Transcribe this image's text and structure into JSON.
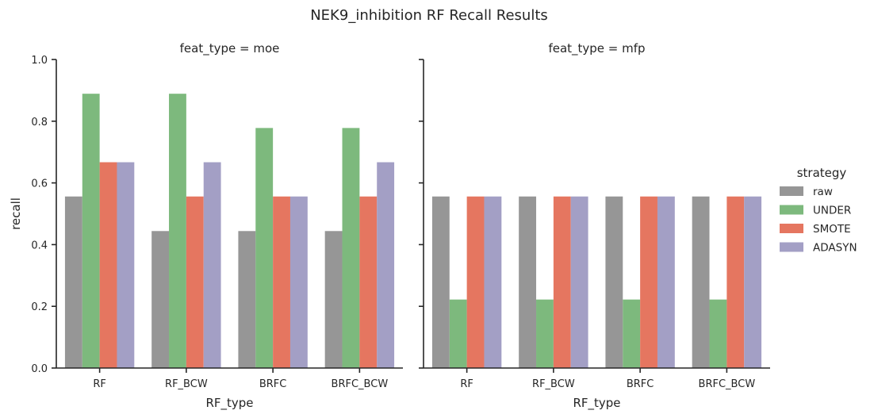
{
  "chart_data": {
    "type": "bar",
    "title": "NEK9_inhibition RF Recall Results",
    "xlabel": "RF_type",
    "ylabel": "recall",
    "ylim": [
      0,
      1
    ],
    "yticks": [
      "0.0",
      "0.2",
      "0.4",
      "0.6",
      "0.8",
      "1.0"
    ],
    "categories": [
      "RF",
      "RF_BCW",
      "BRFC",
      "BRFC_BCW"
    ],
    "legend": {
      "title": "strategy",
      "placement": "right",
      "entries": [
        "raw",
        "UNDER",
        "SMOTE",
        "ADASYN"
      ]
    },
    "colors": {
      "raw": "#969696",
      "UNDER": "#7db97d",
      "SMOTE": "#e57660",
      "ADASYN": "#a39fc5"
    },
    "panels": [
      {
        "title": "feat_type = moe",
        "series": [
          {
            "name": "raw",
            "values": [
              0.556,
              0.444,
              0.444,
              0.444
            ]
          },
          {
            "name": "UNDER",
            "values": [
              0.889,
              0.889,
              0.778,
              0.778
            ]
          },
          {
            "name": "SMOTE",
            "values": [
              0.667,
              0.556,
              0.556,
              0.556
            ]
          },
          {
            "name": "ADASYN",
            "values": [
              0.667,
              0.667,
              0.556,
              0.667
            ]
          }
        ]
      },
      {
        "title": "feat_type = mfp",
        "series": [
          {
            "name": "raw",
            "values": [
              0.556,
              0.556,
              0.556,
              0.556
            ]
          },
          {
            "name": "UNDER",
            "values": [
              0.222,
              0.222,
              0.222,
              0.222
            ]
          },
          {
            "name": "SMOTE",
            "values": [
              0.556,
              0.556,
              0.556,
              0.556
            ]
          },
          {
            "name": "ADASYN",
            "values": [
              0.556,
              0.556,
              0.556,
              0.556
            ]
          }
        ]
      }
    ]
  }
}
